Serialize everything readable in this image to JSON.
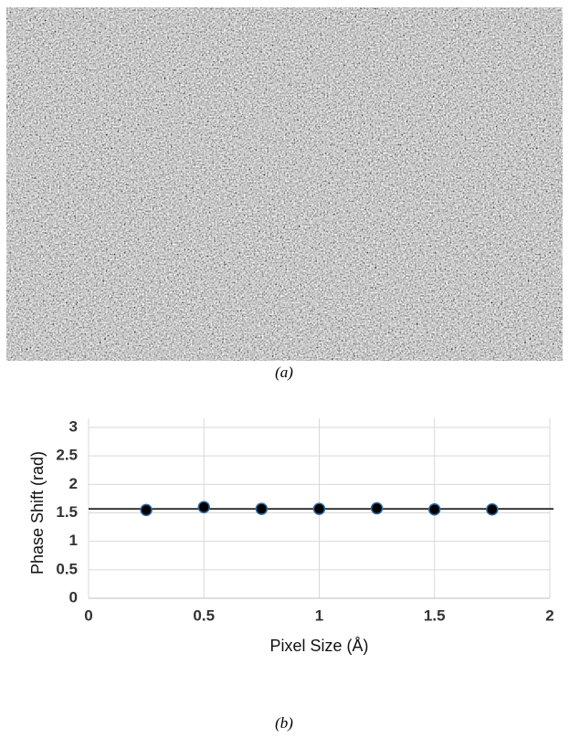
{
  "captions": [
    "(a)",
    "(b)"
  ],
  "chart_data": {
    "type": "scatter",
    "x_label": "Pixel Size (Å)",
    "y_label": "Phase Shift (rad)",
    "x": [
      0.25,
      0.5,
      0.75,
      1,
      1.25,
      1.5,
      1.75
    ],
    "values": [
      1.55,
      1.6,
      1.57,
      1.57,
      1.58,
      1.56,
      1.56
    ],
    "color": "#000000",
    "edge_color": "#2e6da4",
    "reference_line": 1.57,
    "reference_color": "#000000",
    "xlim": [
      0,
      2
    ],
    "xticks": [
      0,
      0.5,
      1,
      1.5,
      2
    ],
    "ylim": [
      0,
      3
    ],
    "yticks": [
      0,
      0.5,
      1,
      1.5,
      2,
      2.5,
      3
    ],
    "grid": true
  }
}
